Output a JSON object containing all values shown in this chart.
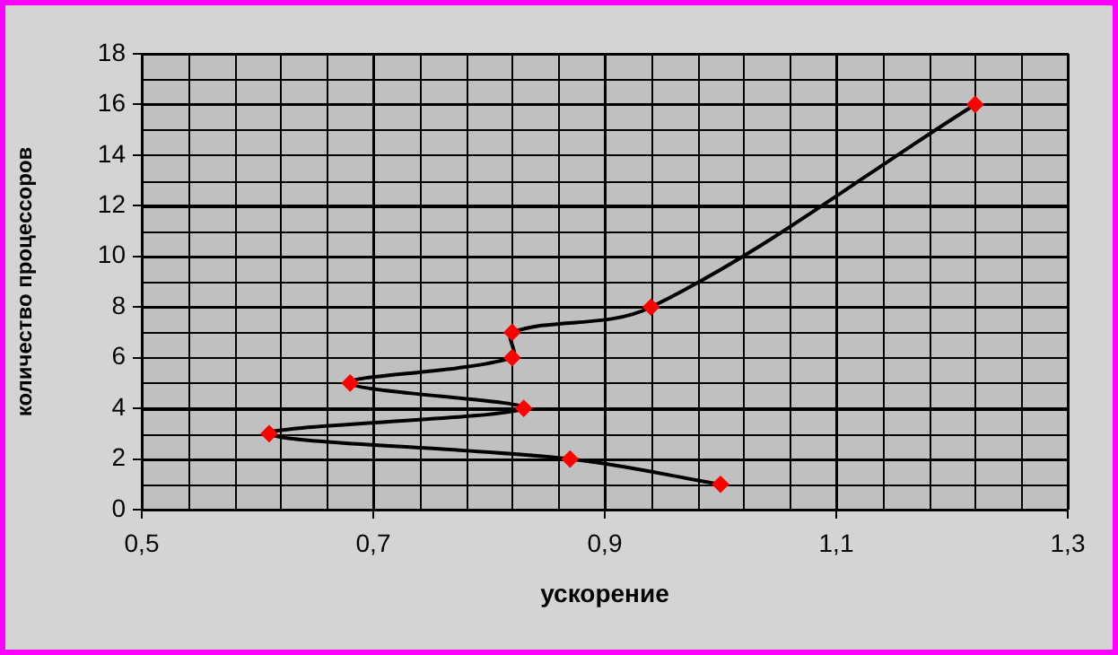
{
  "chart_data": {
    "type": "line",
    "xlabel": "ускорение",
    "ylabel": "количество процессоров",
    "x": [
      1.0,
      0.87,
      0.61,
      0.83,
      0.68,
      0.82,
      0.82,
      0.94,
      1.22
    ],
    "series": [
      {
        "color": "#000000",
        "values": [
          1,
          2,
          3,
          4,
          5,
          6,
          7,
          8,
          16
        ]
      }
    ],
    "xlim": [
      0.5,
      1.3
    ],
    "xticks": [
      {
        "value": 0.5,
        "label": "0,5"
      },
      {
        "value": 0.7,
        "label": "0,7"
      },
      {
        "value": 0.9,
        "label": "0,9"
      },
      {
        "value": 1.1,
        "label": "1,1"
      },
      {
        "value": 1.3,
        "label": "1,3"
      }
    ],
    "ylim": [
      0,
      18
    ],
    "yticks": [
      0,
      2,
      4,
      6,
      8,
      10,
      12,
      14,
      16,
      18
    ],
    "grid": true,
    "legend": false,
    "marker": "diamond",
    "line_style": "solid"
  }
}
